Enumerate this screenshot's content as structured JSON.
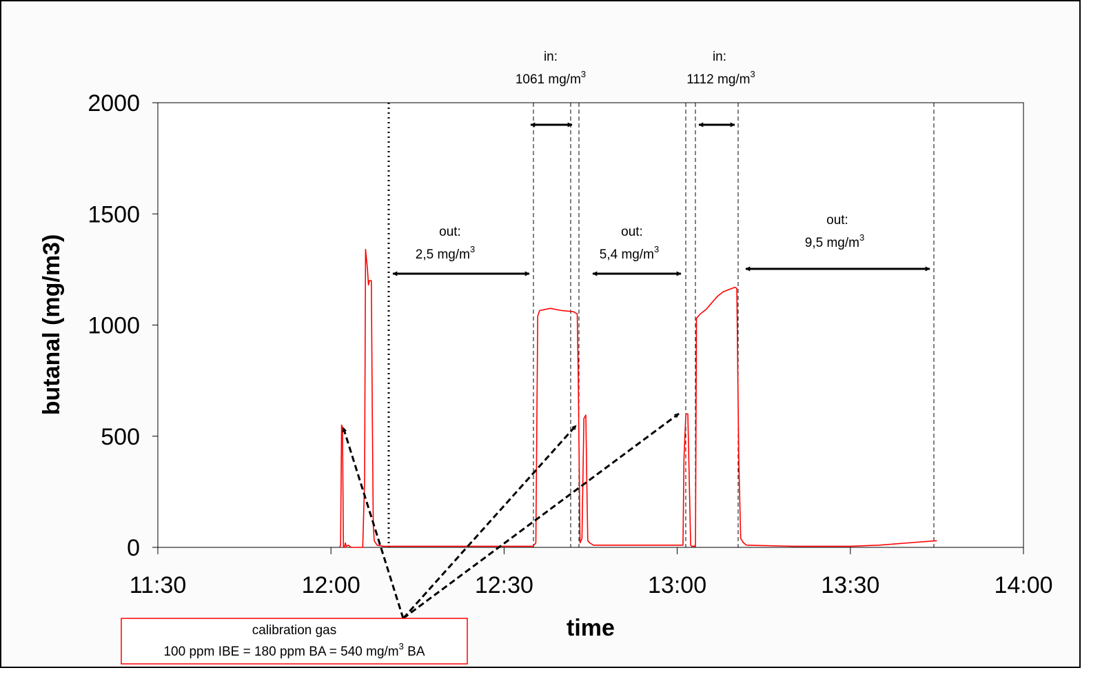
{
  "chart_data": {
    "type": "line",
    "xlabel": "time",
    "ylabel": "butanal (mg/m3)",
    "ylim": [
      0,
      2000
    ],
    "yticks": [
      0,
      500,
      1000,
      1500,
      2000
    ],
    "xlim": [
      "11:30",
      "14:00"
    ],
    "xticks": [
      "11:30",
      "12:00",
      "12:30",
      "13:00",
      "13:30",
      "14:00"
    ],
    "grid": false,
    "series": [
      {
        "color": "#ff0000",
        "x": [
          "12:01:30",
          "12:01:40",
          "12:01:50",
          "12:02:00",
          "12:02:10",
          "12:02:20",
          "12:02:30",
          "12:02:40",
          "12:03:00",
          "12:03:30",
          "12:04:30",
          "12:05:30",
          "12:05:50",
          "12:06:00",
          "12:06:20",
          "12:06:30",
          "12:06:40",
          "12:07:00",
          "12:07:10",
          "12:07:20",
          "12:07:30",
          "12:08:00",
          "12:09:00",
          "12:12:00",
          "12:20:00",
          "12:30:00",
          "12:35:00",
          "12:35:30",
          "12:35:50",
          "12:36:10",
          "12:38:00",
          "12:40:00",
          "12:42:00",
          "12:42:40",
          "12:42:50",
          "12:43:10",
          "12:43:30",
          "12:43:50",
          "12:44:10",
          "12:44:20",
          "12:44:30",
          "12:44:50",
          "12:45:10",
          "12:45:30",
          "12:50:00",
          "13:00:00",
          "13:01:00",
          "13:01:10",
          "13:01:30",
          "13:01:50",
          "13:02:20",
          "13:02:30",
          "13:03:00",
          "13:03:10",
          "13:03:20",
          "13:03:40",
          "13:04:00",
          "13:05:00",
          "13:06:00",
          "13:07:00",
          "13:08:00",
          "13:09:00",
          "13:10:00",
          "13:10:20",
          "13:10:40",
          "13:11:00",
          "13:11:30",
          "13:12:00",
          "13:20:00",
          "13:30:00",
          "13:35:00",
          "13:40:00",
          "13:45:00"
        ],
        "values": [
          0,
          10,
          550,
          540,
          5,
          0,
          20,
          5,
          10,
          0,
          0,
          0,
          300,
          1340,
          1250,
          1180,
          1200,
          1200,
          600,
          100,
          30,
          10,
          5,
          5,
          5,
          5,
          5,
          20,
          1040,
          1065,
          1075,
          1065,
          1060,
          1050,
          800,
          20,
          40,
          580,
          595,
          300,
          30,
          20,
          15,
          10,
          10,
          10,
          10,
          400,
          600,
          600,
          10,
          5,
          5,
          10,
          1030,
          1040,
          1050,
          1070,
          1100,
          1130,
          1150,
          1160,
          1170,
          1165,
          400,
          40,
          20,
          10,
          5,
          5,
          10,
          20,
          30
        ]
      }
    ],
    "annotations": [
      {
        "line1": "out:",
        "line2": "2,5 mg/m",
        "sup": "3"
      },
      {
        "line1": "in:",
        "line2": "1061 mg/m",
        "sup": "3"
      },
      {
        "line1": "out:",
        "line2": "5,4 mg/m",
        "sup": "3"
      },
      {
        "line1": "in:",
        "line2": "1112 mg/m",
        "sup": "3"
      },
      {
        "line1": "out:",
        "line2": "9,5 mg/m",
        "sup": "3"
      }
    ],
    "callout": {
      "line1": "calibration gas",
      "line2_pre": "100 ppm IBE = 180 ppm BA = 540 mg/m",
      "line2_sup": "3",
      "line2_post": " BA"
    }
  }
}
